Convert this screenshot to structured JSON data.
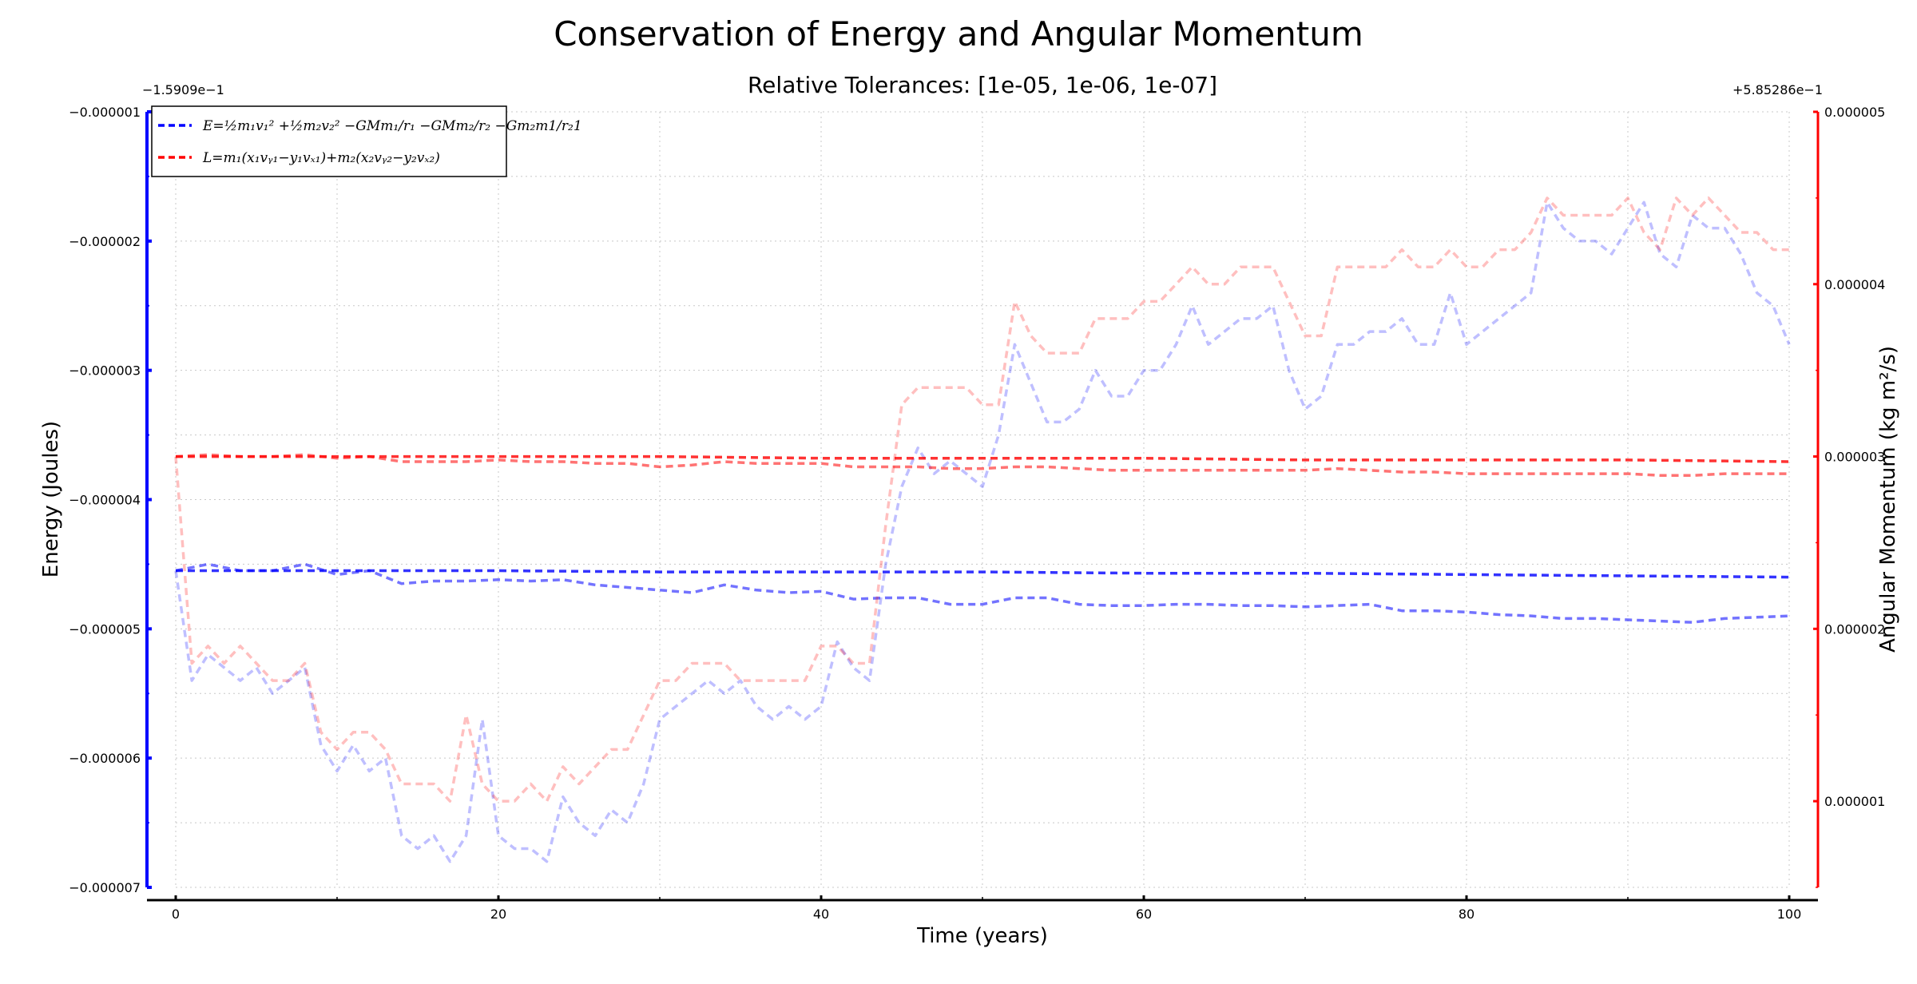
{
  "chart_data": {
    "type": "line",
    "title": "Conservation of Energy and Angular Momentum",
    "subtitle": "Relative Tolerances: [1e-05, 1e-06, 1e-07]",
    "xlabel": "Time (years)",
    "ylabel_left": "Energy (Joules)",
    "ylabel_right": "Angular Momentum (kg m²/s)",
    "left_offset_label": "−1.5909e−1",
    "right_offset_label": "+5.85286e−1",
    "xlim": [
      0,
      100
    ],
    "ylim_left": [
      -7e-06,
      -1e-06
    ],
    "ylim_right": [
      5e-07,
      5e-06
    ],
    "x_ticks": [
      0,
      20,
      40,
      60,
      80,
      100
    ],
    "x_tick_labels": [
      "0",
      "20",
      "40",
      "60",
      "80",
      "100"
    ],
    "y_left_ticks": [
      -1e-06,
      -2e-06,
      -3e-06,
      -4e-06,
      -5e-06,
      -6e-06,
      -7e-06
    ],
    "y_left_tick_labels": [
      "−0.000001",
      "−0.000002",
      "−0.000003",
      "−0.000004",
      "−0.000005",
      "−0.000006",
      "−0.000007"
    ],
    "y_right_ticks": [
      1e-06,
      2e-06,
      3e-06,
      4e-06,
      5e-06
    ],
    "y_right_tick_labels": [
      "0.000001",
      "0.000002",
      "0.000003",
      "0.000004",
      "0.000005"
    ],
    "grid": true,
    "legend_placement": "top-left",
    "legend": [
      {
        "label": "E=½m₁v₁² +½m₂v₂² −GMm₁/r₁ −GMm₂/r₂ −Gm₂m1/r₂1",
        "color": "#0000ff"
      },
      {
        "label": "L=m₁(x₁vᵧ₁−y₁vₓ₁)+m₂(x₂vᵧ₂−y₂vₓ₂)",
        "color": "#ff0000"
      }
    ],
    "series": [
      {
        "axis": "left",
        "color": "#0000ff",
        "opacity": 0.25,
        "x": [
          0,
          1,
          2,
          3,
          4,
          5,
          6,
          7,
          8,
          9,
          10,
          11,
          12,
          13,
          14,
          15,
          16,
          17,
          18,
          19,
          20,
          21,
          22,
          23,
          24,
          25,
          26,
          27,
          28,
          29,
          30,
          31,
          32,
          33,
          34,
          35,
          36,
          37,
          38,
          39,
          40,
          41,
          42,
          43,
          44,
          45,
          46,
          47,
          48,
          49,
          50,
          51,
          52,
          53,
          54,
          55,
          56,
          57,
          58,
          59,
          60,
          61,
          62,
          63,
          64,
          65,
          66,
          67,
          68,
          69,
          70,
          71,
          72,
          73,
          74,
          75,
          76,
          77,
          78,
          79,
          80,
          81,
          82,
          83,
          84,
          85,
          86,
          87,
          88,
          89,
          90,
          91,
          92,
          93,
          94,
          95,
          96,
          97,
          98,
          99,
          100
        ],
        "y": [
          -4.55e-06,
          -5.4e-06,
          -5.2e-06,
          -5.3e-06,
          -5.4e-06,
          -5.3e-06,
          -5.5e-06,
          -5.4e-06,
          -5.3e-06,
          -5.9e-06,
          -6.1e-06,
          -5.9e-06,
          -6.1e-06,
          -6e-06,
          -6.6e-06,
          -6.7e-06,
          -6.6e-06,
          -6.8e-06,
          -6.6e-06,
          -5.7e-06,
          -6.6e-06,
          -6.7e-06,
          -6.7e-06,
          -6.8e-06,
          -6.3e-06,
          -6.5e-06,
          -6.6e-06,
          -6.4e-06,
          -6.5e-06,
          -6.2e-06,
          -5.7e-06,
          -5.6e-06,
          -5.5e-06,
          -5.4e-06,
          -5.5e-06,
          -5.4e-06,
          -5.6e-06,
          -5.7e-06,
          -5.6e-06,
          -5.7e-06,
          -5.6e-06,
          -5.1e-06,
          -5.3e-06,
          -5.4e-06,
          -4.5e-06,
          -3.9e-06,
          -3.6e-06,
          -3.8e-06,
          -3.7e-06,
          -3.8e-06,
          -3.9e-06,
          -3.5e-06,
          -2.8e-06,
          -3.1e-06,
          -3.4e-06,
          -3.4e-06,
          -3.3e-06,
          -3e-06,
          -3.2e-06,
          -3.2e-06,
          -3e-06,
          -3e-06,
          -2.8e-06,
          -2.5e-06,
          -2.8e-06,
          -2.7e-06,
          -2.6e-06,
          -2.6e-06,
          -2.5e-06,
          -3e-06,
          -3.3e-06,
          -3.2e-06,
          -2.8e-06,
          -2.8e-06,
          -2.7e-06,
          -2.7e-06,
          -2.6e-06,
          -2.8e-06,
          -2.8e-06,
          -2.4e-06,
          -2.8e-06,
          -2.7e-06,
          -2.6e-06,
          -2.5e-06,
          -2.4e-06,
          -1.7e-06,
          -1.9e-06,
          -2e-06,
          -2e-06,
          -2.1e-06,
          -1.9e-06,
          -1.7e-06,
          -2.1e-06,
          -2.2e-06,
          -1.8e-06,
          -1.9e-06,
          -1.9e-06,
          -2.1e-06,
          -2.4e-06,
          -2.5e-06,
          -2.8e-06
        ]
      },
      {
        "axis": "left",
        "color": "#0000ff",
        "opacity": 0.55,
        "x": [
          0,
          2,
          4,
          6,
          8,
          10,
          12,
          14,
          16,
          18,
          20,
          22,
          24,
          26,
          28,
          30,
          32,
          34,
          36,
          38,
          40,
          42,
          44,
          46,
          48,
          50,
          52,
          54,
          56,
          58,
          60,
          62,
          64,
          66,
          68,
          70,
          72,
          74,
          76,
          78,
          80,
          82,
          84,
          86,
          88,
          90,
          92,
          94,
          96,
          98,
          100
        ],
        "y": [
          -4.55e-06,
          -4.5e-06,
          -4.55e-06,
          -4.55e-06,
          -4.5e-06,
          -4.58e-06,
          -4.55e-06,
          -4.65e-06,
          -4.63e-06,
          -4.63e-06,
          -4.62e-06,
          -4.63e-06,
          -4.62e-06,
          -4.66e-06,
          -4.68e-06,
          -4.7e-06,
          -4.72e-06,
          -4.66e-06,
          -4.7e-06,
          -4.72e-06,
          -4.71e-06,
          -4.77e-06,
          -4.76e-06,
          -4.76e-06,
          -4.81e-06,
          -4.81e-06,
          -4.76e-06,
          -4.76e-06,
          -4.81e-06,
          -4.82e-06,
          -4.82e-06,
          -4.81e-06,
          -4.81e-06,
          -4.82e-06,
          -4.82e-06,
          -4.83e-06,
          -4.82e-06,
          -4.81e-06,
          -4.86e-06,
          -4.86e-06,
          -4.87e-06,
          -4.89e-06,
          -4.9e-06,
          -4.92e-06,
          -4.92e-06,
          -4.93e-06,
          -4.94e-06,
          -4.95e-06,
          -4.92e-06,
          -4.91e-06,
          -4.9e-06
        ]
      },
      {
        "axis": "left",
        "color": "#0000ff",
        "opacity": 0.8,
        "x": [
          0,
          10,
          20,
          30,
          40,
          50,
          60,
          70,
          80,
          90,
          100
        ],
        "y": [
          -4.55e-06,
          -4.55e-06,
          -4.55e-06,
          -4.56e-06,
          -4.56e-06,
          -4.56e-06,
          -4.57e-06,
          -4.57e-06,
          -4.58e-06,
          -4.59e-06,
          -4.6e-06
        ]
      },
      {
        "axis": "right",
        "color": "#ff0000",
        "opacity": 0.25,
        "x": [
          0,
          1,
          2,
          3,
          4,
          5,
          6,
          7,
          8,
          9,
          10,
          11,
          12,
          13,
          14,
          15,
          16,
          17,
          18,
          19,
          20,
          21,
          22,
          23,
          24,
          25,
          26,
          27,
          28,
          29,
          30,
          31,
          32,
          33,
          34,
          35,
          36,
          37,
          38,
          39,
          40,
          41,
          42,
          43,
          44,
          45,
          46,
          47,
          48,
          49,
          50,
          51,
          52,
          53,
          54,
          55,
          56,
          57,
          58,
          59,
          60,
          61,
          62,
          63,
          64,
          65,
          66,
          67,
          68,
          69,
          70,
          71,
          72,
          73,
          74,
          75,
          76,
          77,
          78,
          79,
          80,
          81,
          82,
          83,
          84,
          85,
          86,
          87,
          88,
          89,
          90,
          91,
          92,
          93,
          94,
          95,
          96,
          97,
          98,
          99,
          100
        ],
        "y": [
          3e-06,
          1.8e-06,
          1.9e-06,
          1.8e-06,
          1.9e-06,
          1.8e-06,
          1.7e-06,
          1.7e-06,
          1.8e-06,
          1.4e-06,
          1.3e-06,
          1.4e-06,
          1.4e-06,
          1.3e-06,
          1.1e-06,
          1.1e-06,
          1.1e-06,
          1e-06,
          1.5e-06,
          1.1e-06,
          1e-06,
          1e-06,
          1.1e-06,
          1e-06,
          1.2e-06,
          1.1e-06,
          1.2e-06,
          1.3e-06,
          1.3e-06,
          1.5e-06,
          1.7e-06,
          1.7e-06,
          1.8e-06,
          1.8e-06,
          1.8e-06,
          1.7e-06,
          1.7e-06,
          1.7e-06,
          1.7e-06,
          1.7e-06,
          1.9e-06,
          1.9e-06,
          1.8e-06,
          1.8e-06,
          2.6e-06,
          3.3e-06,
          3.4e-06,
          3.4e-06,
          3.4e-06,
          3.4e-06,
          3.3e-06,
          3.3e-06,
          3.9e-06,
          3.7e-06,
          3.6e-06,
          3.6e-06,
          3.6e-06,
          3.8e-06,
          3.8e-06,
          3.8e-06,
          3.9e-06,
          3.9e-06,
          4e-06,
          4.1e-06,
          4e-06,
          4e-06,
          4.1e-06,
          4.1e-06,
          4.1e-06,
          3.9e-06,
          3.7e-06,
          3.7e-06,
          4.1e-06,
          4.1e-06,
          4.1e-06,
          4.1e-06,
          4.2e-06,
          4.1e-06,
          4.1e-06,
          4.2e-06,
          4.1e-06,
          4.1e-06,
          4.2e-06,
          4.2e-06,
          4.3e-06,
          4.5e-06,
          4.4e-06,
          4.4e-06,
          4.4e-06,
          4.4e-06,
          4.5e-06,
          4.3e-06,
          4.2e-06,
          4.5e-06,
          4.4e-06,
          4.5e-06,
          4.4e-06,
          4.3e-06,
          4.3e-06,
          4.2e-06,
          4.2e-06
        ]
      },
      {
        "axis": "right",
        "color": "#ff0000",
        "opacity": 0.55,
        "x": [
          0,
          2,
          4,
          6,
          8,
          10,
          12,
          14,
          16,
          18,
          20,
          22,
          24,
          26,
          28,
          30,
          32,
          34,
          36,
          38,
          40,
          42,
          44,
          46,
          48,
          50,
          52,
          54,
          56,
          58,
          60,
          62,
          64,
          66,
          68,
          70,
          72,
          74,
          76,
          78,
          80,
          82,
          84,
          86,
          88,
          90,
          92,
          94,
          96,
          98,
          100
        ],
        "y": [
          3e-06,
          3.01e-06,
          3e-06,
          3e-06,
          3.01e-06,
          2.99e-06,
          3e-06,
          2.97e-06,
          2.97e-06,
          2.97e-06,
          2.98e-06,
          2.97e-06,
          2.97e-06,
          2.96e-06,
          2.96e-06,
          2.94e-06,
          2.95e-06,
          2.97e-06,
          2.96e-06,
          2.96e-06,
          2.96e-06,
          2.94e-06,
          2.94e-06,
          2.94e-06,
          2.93e-06,
          2.93e-06,
          2.94e-06,
          2.94e-06,
          2.93e-06,
          2.92e-06,
          2.92e-06,
          2.92e-06,
          2.92e-06,
          2.92e-06,
          2.92e-06,
          2.92e-06,
          2.93e-06,
          2.92e-06,
          2.91e-06,
          2.91e-06,
          2.9e-06,
          2.9e-06,
          2.9e-06,
          2.9e-06,
          2.9e-06,
          2.9e-06,
          2.89e-06,
          2.89e-06,
          2.9e-06,
          2.9e-06,
          2.9e-06
        ]
      },
      {
        "axis": "right",
        "color": "#ff0000",
        "opacity": 0.8,
        "x": [
          0,
          10,
          20,
          30,
          40,
          50,
          60,
          70,
          80,
          90,
          100
        ],
        "y": [
          3e-06,
          3e-06,
          3e-06,
          3e-06,
          2.99e-06,
          2.99e-06,
          2.99e-06,
          2.98e-06,
          2.98e-06,
          2.98e-06,
          2.97e-06
        ]
      }
    ]
  }
}
